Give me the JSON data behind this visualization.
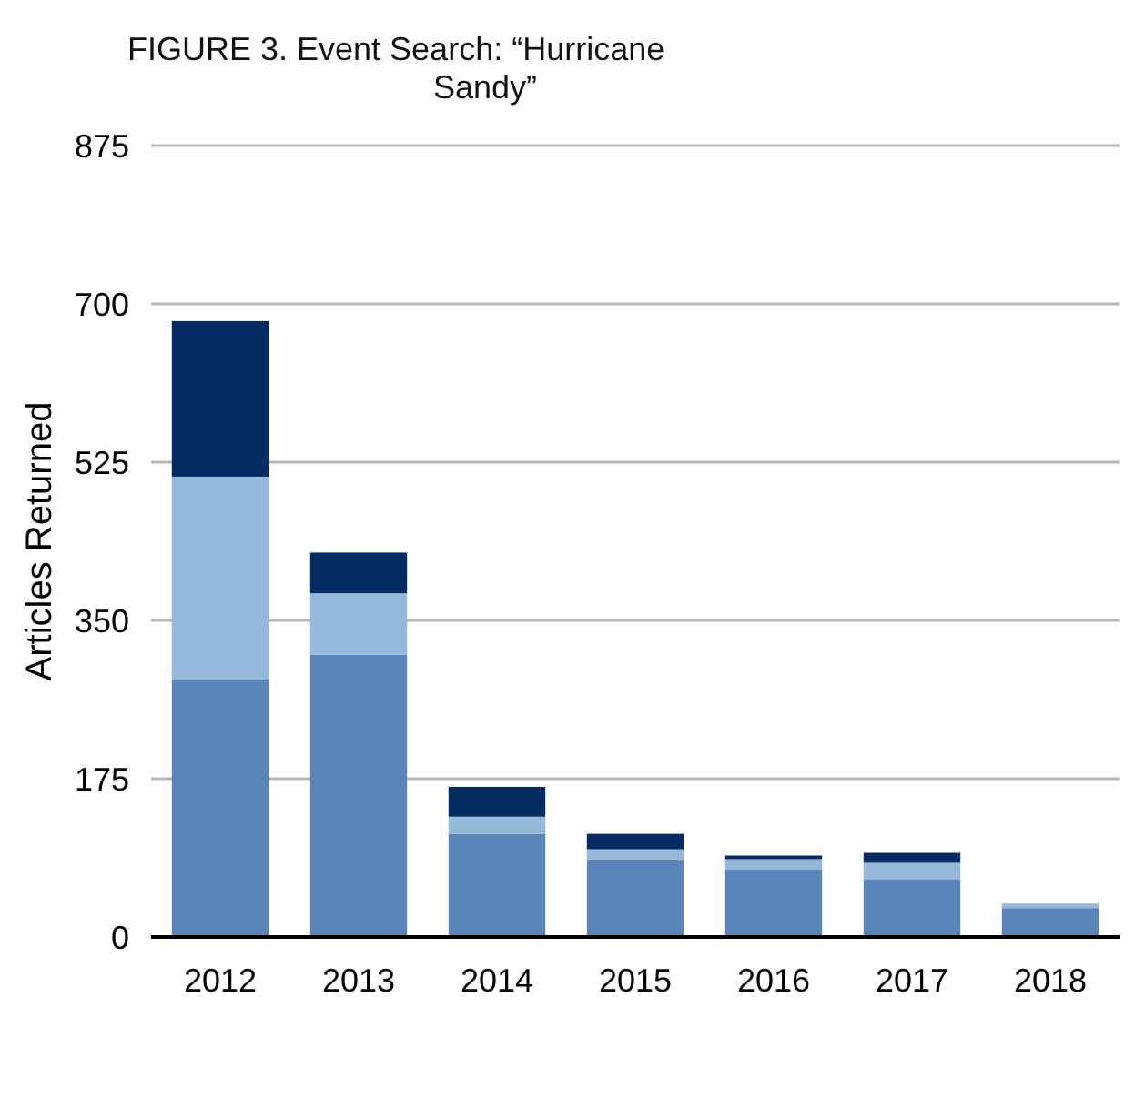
{
  "chart_data": {
    "type": "bar",
    "title": "FIGURE 3. Event Search: “Hurricane Sandy”",
    "ylabel": "Articles Returned",
    "categories": [
      "2012",
      "2013",
      "2014",
      "2015",
      "2016",
      "2017",
      "2018"
    ],
    "stacked": true,
    "series": [
      {
        "color": "#5b84b8",
        "values": [
          284,
          312,
          114,
          86,
          75,
          64,
          32
        ]
      },
      {
        "color": "#95b8db",
        "values": [
          225,
          68,
          19,
          11,
          11,
          18,
          5
        ]
      },
      {
        "color": "#032a61",
        "values": [
          172,
          45,
          33,
          17,
          4,
          11,
          0
        ]
      }
    ],
    "ylim": [
      0,
      875
    ],
    "yticks": [
      0,
      175,
      350,
      525,
      700,
      875
    ],
    "grid": "y"
  }
}
